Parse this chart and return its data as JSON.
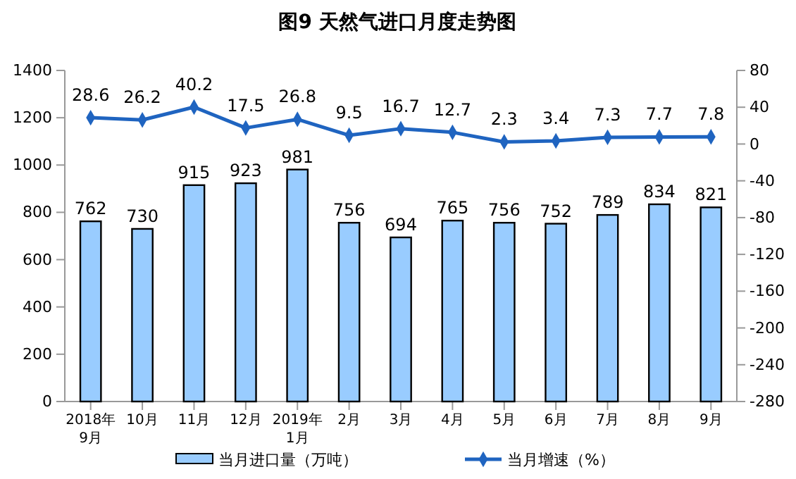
{
  "chart_data": {
    "type": "bar",
    "title": "图9  天然气进口月度走势图",
    "categories": [
      "2018年\n9月",
      "10月",
      "11月",
      "12月",
      "2019年\n1月",
      "2月",
      "3月",
      "4月",
      "5月",
      "6月",
      "7月",
      "8月",
      "9月"
    ],
    "series": [
      {
        "name": "当月进口量（万吨）",
        "color": "#99ccff",
        "values": [
          762,
          730,
          915,
          923,
          981,
          756,
          694,
          765,
          756,
          752,
          789,
          834,
          821
        ]
      },
      {
        "name": "当月增速（%）",
        "type": "line",
        "axis": "y2",
        "color": "#1f64c0",
        "marker": "diamond",
        "values": [
          28.6,
          26.2,
          40.2,
          17.5,
          26.8,
          9.5,
          16.7,
          12.7,
          2.3,
          3.4,
          7.3,
          7.7,
          7.8
        ]
      }
    ],
    "ylim": [
      0,
      1400
    ],
    "yticks": [
      0,
      200,
      400,
      600,
      800,
      1000,
      1200,
      1400
    ],
    "y2lim": [
      -280,
      80
    ],
    "y2ticks": [
      -280,
      -240,
      -200,
      -160,
      -120,
      -80,
      -40,
      0,
      40,
      80
    ],
    "data_labels": true,
    "grid": false,
    "legend": "bottom"
  }
}
